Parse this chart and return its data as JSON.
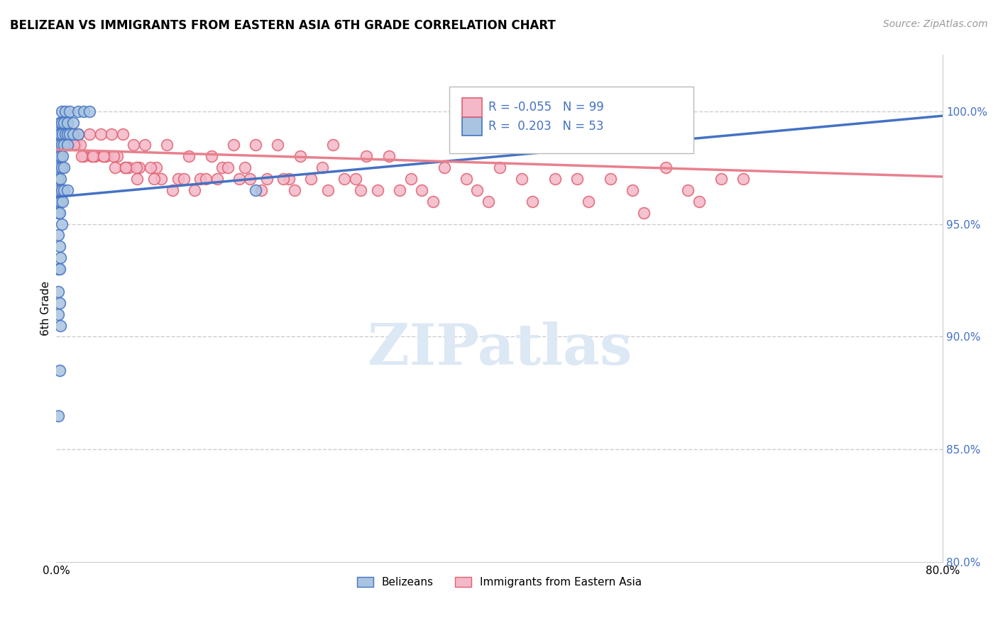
{
  "title": "BELIZEAN VS IMMIGRANTS FROM EASTERN ASIA 6TH GRADE CORRELATION CHART",
  "source": "Source: ZipAtlas.com",
  "ylabel": "6th Grade",
  "xlim": [
    0.0,
    80.0
  ],
  "ylim": [
    80.0,
    102.5
  ],
  "legend_blue_r": "0.203",
  "legend_blue_n": "53",
  "legend_pink_r": "-0.055",
  "legend_pink_n": "99",
  "blue_color": "#a8c4e0",
  "pink_color": "#f4b8c8",
  "blue_edge_color": "#4472c4",
  "pink_edge_color": "#e06070",
  "blue_line_color": "#4472c4",
  "pink_line_color": "#e8808e",
  "legend_text_color": "#4472c4",
  "watermark_color": "#dde8f5",
  "background_color": "#ffffff",
  "grid_color": "#cccccc",
  "blue_scatter_x": [
    0.5,
    0.8,
    1.2,
    2.0,
    2.5,
    3.0,
    0.3,
    0.5,
    0.7,
    1.0,
    1.5,
    0.2,
    0.4,
    0.6,
    0.8,
    1.0,
    1.2,
    1.5,
    2.0,
    0.3,
    0.5,
    0.7,
    1.0,
    0.2,
    0.4,
    0.6,
    0.3,
    0.5,
    0.7,
    0.2,
    0.4,
    0.3,
    0.5,
    0.7,
    1.0,
    0.2,
    0.4,
    0.6,
    0.2,
    0.3,
    0.5,
    0.2,
    0.3,
    0.4,
    0.2,
    0.3,
    0.2,
    0.3,
    0.2,
    18.0,
    0.4,
    0.2,
    0.3
  ],
  "blue_scatter_y": [
    100.0,
    100.0,
    100.0,
    100.0,
    100.0,
    100.0,
    99.5,
    99.5,
    99.5,
    99.5,
    99.5,
    99.0,
    99.0,
    99.0,
    99.0,
    99.0,
    99.0,
    99.0,
    99.0,
    98.5,
    98.5,
    98.5,
    98.5,
    98.0,
    98.0,
    98.0,
    97.5,
    97.5,
    97.5,
    97.0,
    97.0,
    96.5,
    96.5,
    96.5,
    96.5,
    96.0,
    96.0,
    96.0,
    95.5,
    95.5,
    95.0,
    94.5,
    94.0,
    93.5,
    93.0,
    91.5,
    91.0,
    88.5,
    86.5,
    96.5,
    90.5,
    92.0,
    93.0
  ],
  "pink_scatter_x": [
    0.5,
    1.0,
    1.5,
    2.0,
    3.0,
    4.0,
    5.0,
    6.0,
    7.0,
    8.0,
    10.0,
    12.0,
    14.0,
    16.0,
    18.0,
    20.0,
    22.0,
    25.0,
    28.0,
    30.0,
    35.0,
    40.0,
    45.0,
    50.0,
    55.0,
    60.0,
    0.8,
    1.2,
    1.8,
    2.5,
    3.5,
    4.5,
    5.5,
    6.5,
    7.5,
    9.0,
    11.0,
    13.0,
    15.0,
    17.0,
    19.0,
    21.0,
    24.0,
    27.0,
    32.0,
    37.0,
    42.0,
    47.0,
    52.0,
    57.0,
    62.0,
    0.3,
    0.6,
    0.9,
    1.4,
    2.2,
    3.2,
    4.2,
    5.2,
    6.2,
    7.2,
    8.5,
    9.5,
    11.5,
    13.5,
    15.5,
    17.5,
    20.5,
    23.0,
    26.0,
    29.0,
    33.0,
    38.0,
    43.0,
    48.0,
    53.0,
    58.0,
    0.4,
    0.7,
    1.1,
    1.6,
    2.3,
    3.3,
    4.3,
    5.3,
    6.3,
    7.3,
    8.8,
    10.5,
    12.5,
    14.5,
    16.5,
    18.5,
    21.5,
    24.5,
    27.5,
    31.0,
    34.0,
    39.0
  ],
  "pink_scatter_y": [
    99.5,
    99.0,
    99.0,
    99.0,
    99.0,
    99.0,
    99.0,
    99.0,
    98.5,
    98.5,
    98.5,
    98.0,
    98.0,
    98.5,
    98.5,
    98.5,
    98.0,
    98.5,
    98.0,
    98.0,
    97.5,
    97.5,
    97.0,
    97.0,
    97.5,
    97.0,
    98.5,
    98.5,
    98.5,
    98.0,
    98.0,
    98.0,
    98.0,
    97.5,
    97.5,
    97.5,
    97.0,
    97.0,
    97.5,
    97.5,
    97.0,
    97.0,
    97.5,
    97.0,
    97.0,
    97.0,
    97.0,
    97.0,
    96.5,
    96.5,
    97.0,
    99.0,
    99.0,
    98.5,
    98.5,
    98.5,
    98.0,
    98.0,
    98.0,
    97.5,
    97.5,
    97.5,
    97.0,
    97.0,
    97.0,
    97.5,
    97.0,
    97.0,
    97.0,
    97.0,
    96.5,
    96.5,
    96.5,
    96.0,
    96.0,
    95.5,
    96.0,
    99.5,
    99.0,
    98.5,
    98.5,
    98.0,
    98.0,
    98.0,
    97.5,
    97.5,
    97.0,
    97.0,
    96.5,
    96.5,
    97.0,
    97.0,
    96.5,
    96.5,
    96.5,
    96.5,
    96.5,
    96.0,
    96.0
  ],
  "blue_trendline_x": [
    0.0,
    80.0
  ],
  "blue_trendline_y": [
    96.2,
    99.8
  ],
  "pink_trendline_x": [
    0.0,
    80.0
  ],
  "pink_trendline_y": [
    98.3,
    97.1
  ],
  "dashed_line_y": 100.0,
  "yticks": [
    80.0,
    85.0,
    90.0,
    95.0,
    100.0
  ],
  "ytick_labels": [
    "80.0%",
    "85.0%",
    "90.0%",
    "95.0%",
    "100.0%"
  ],
  "xticks": [
    0.0,
    80.0
  ],
  "xtick_labels": [
    "0.0%",
    "80.0%"
  ],
  "legend1_label": "Belizeans",
  "legend2_label": "Immigrants from Eastern Asia"
}
